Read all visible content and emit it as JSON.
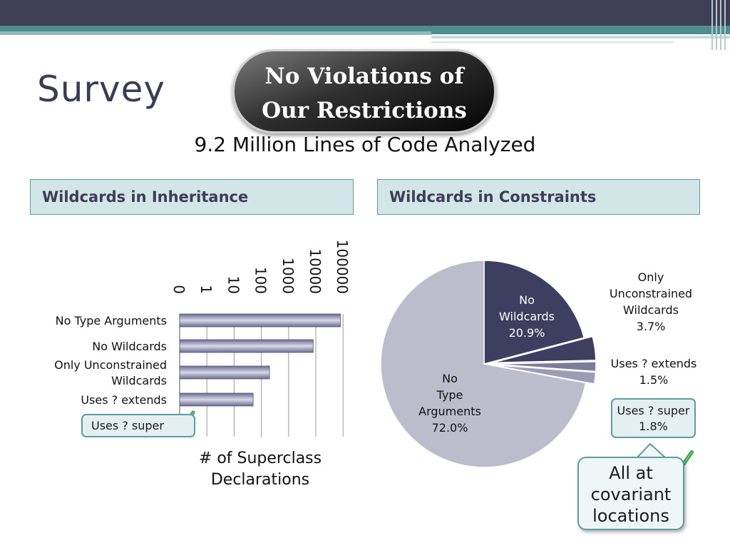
{
  "slide": {
    "title": "Survey",
    "banner_line1": "No Violations of",
    "banner_line2": "Our Restrictions",
    "subtitle": "9.2 Million Lines of Code Analyzed"
  },
  "panels": {
    "left_header": "Wildcards in Inheritance",
    "right_header": "Wildcards in Constraints"
  },
  "callouts": {
    "covariant": [
      "All at",
      "covariant",
      "locations"
    ]
  },
  "colors": {
    "dark": "#3e3e60",
    "pie_light": "#bcbccd",
    "pie_mid": "#7d7d9b",
    "teal": "#5f9c9f",
    "check": "#2ea043"
  },
  "chart_data": [
    {
      "type": "bar",
      "orientation": "horizontal",
      "scale": "log",
      "categories": [
        "No Type Arguments",
        "No Wildcards",
        "Only Unconstrained Wildcards",
        "Uses ? extends",
        "Uses ? super"
      ],
      "values": [
        80000,
        8000,
        200,
        50,
        0
      ],
      "xlabel": "# of Superclass Declarations",
      "ticks": [
        "0",
        "1",
        "10",
        "100",
        "1000",
        "10000",
        "100000"
      ],
      "xlim": [
        0,
        100000
      ],
      "grid": true
    },
    {
      "type": "pie",
      "slices": [
        {
          "label": "No Wildcards",
          "value": 20.9,
          "value_label": "20.9%"
        },
        {
          "label": "Only Unconstrained Wildcards",
          "value": 3.7,
          "value_label": "3.7%"
        },
        {
          "label": "Uses ? extends",
          "value": 1.5,
          "value_label": "1.5%"
        },
        {
          "label": "Uses ? super",
          "value": 1.8,
          "value_label": "1.8%"
        },
        {
          "label": "No Type Arguments",
          "value": 72.0,
          "value_label": "72.0%"
        }
      ]
    }
  ]
}
